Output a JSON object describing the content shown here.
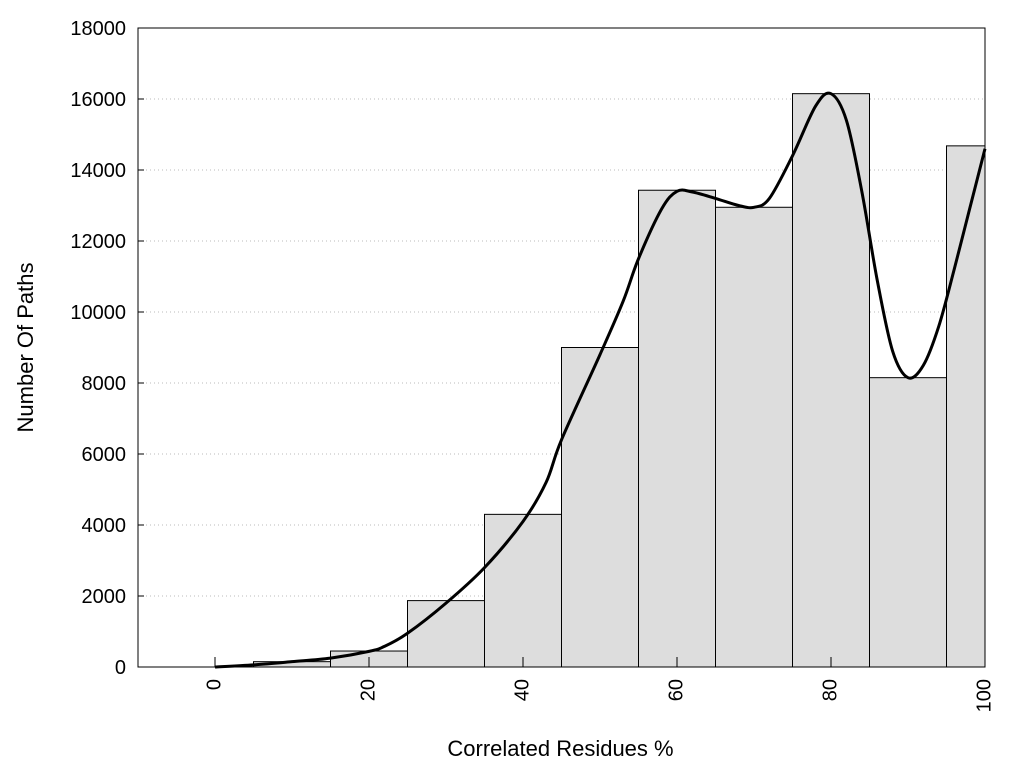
{
  "chart_data": {
    "type": "bar",
    "title": "",
    "xlabel": "Correlated Residues %",
    "ylabel": "Number Of Paths",
    "x_ticks": [
      0,
      20,
      40,
      60,
      80,
      100
    ],
    "y_ticks": [
      0,
      2000,
      4000,
      6000,
      8000,
      10000,
      12000,
      14000,
      16000,
      18000
    ],
    "xlim": [
      -10,
      100
    ],
    "ylim": [
      0,
      18000
    ],
    "grid": "horizontal dotted",
    "bar_width": 10,
    "bar_color": "#dddddd",
    "bars": [
      {
        "x": 0,
        "value": 0
      },
      {
        "x": 10,
        "value": 150
      },
      {
        "x": 20,
        "value": 450
      },
      {
        "x": 30,
        "value": 1870
      },
      {
        "x": 40,
        "value": 4300
      },
      {
        "x": 50,
        "value": 9000
      },
      {
        "x": 60,
        "value": 13430
      },
      {
        "x": 70,
        "value": 12950
      },
      {
        "x": 80,
        "value": 16150
      },
      {
        "x": 90,
        "value": 8150
      },
      {
        "x": 100,
        "value": 14680
      }
    ],
    "smooth_line": {
      "color": "#000000",
      "points": [
        [
          0,
          0
        ],
        [
          5,
          60
        ],
        [
          10,
          150
        ],
        [
          15,
          250
        ],
        [
          20,
          440
        ],
        [
          22,
          580
        ],
        [
          25,
          950
        ],
        [
          30,
          1800
        ],
        [
          35,
          2800
        ],
        [
          40,
          4100
        ],
        [
          43,
          5200
        ],
        [
          45,
          6400
        ],
        [
          50,
          8800
        ],
        [
          53,
          10300
        ],
        [
          55,
          11500
        ],
        [
          58,
          12900
        ],
        [
          60,
          13400
        ],
        [
          62,
          13380
        ],
        [
          65,
          13200
        ],
        [
          68,
          13000
        ],
        [
          70,
          12950
        ],
        [
          72,
          13200
        ],
        [
          75,
          14400
        ],
        [
          78,
          15800
        ],
        [
          80,
          16150
        ],
        [
          82,
          15400
        ],
        [
          84,
          13400
        ],
        [
          86,
          10900
        ],
        [
          88,
          8900
        ],
        [
          90,
          8150
        ],
        [
          92,
          8500
        ],
        [
          94,
          9600
        ],
        [
          96,
          11200
        ],
        [
          98,
          12900
        ],
        [
          100,
          14600
        ]
      ]
    }
  }
}
